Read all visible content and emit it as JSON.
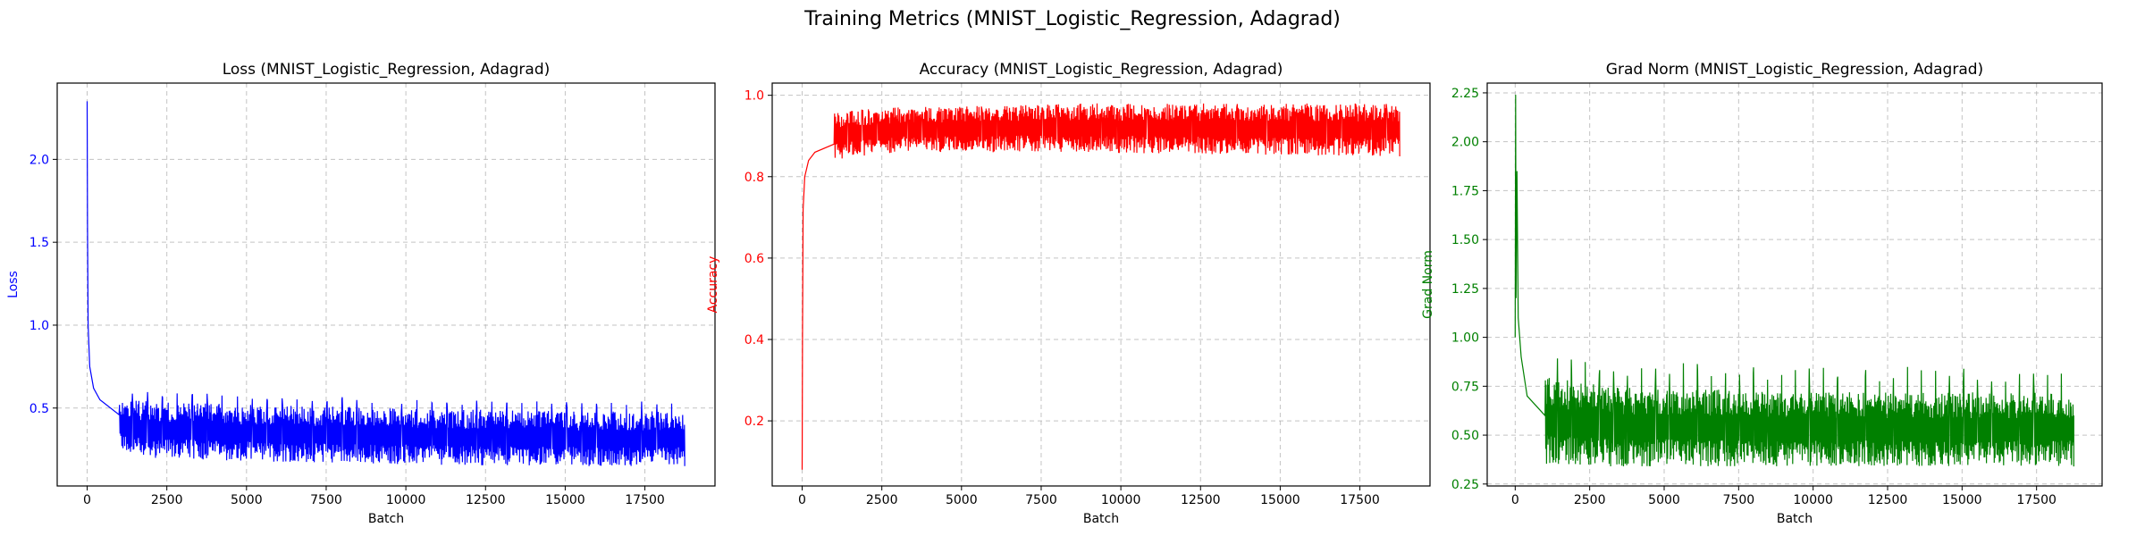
{
  "figure": {
    "title": "Training Metrics (MNIST_Logistic_Regression, Adagrad)"
  },
  "chart_data": [
    {
      "type": "line",
      "title": "Loss (MNIST_Logistic_Regression, Adagrad)",
      "xlabel": "Batch",
      "ylabel": "Loss",
      "color": "#0000ff",
      "label_color": "#0000ff",
      "grid": true,
      "xlim": [
        -940,
        19700
      ],
      "ylim": [
        0.03,
        2.46
      ],
      "xticks": [
        0,
        2500,
        5000,
        7500,
        10000,
        12500,
        15000,
        17500
      ],
      "yticks": [
        0.5,
        1.0,
        1.5,
        2.0
      ],
      "series": [
        {
          "x_end": 18750,
          "initial": [
            [
              0,
              2.35
            ],
            [
              10,
              1.6
            ],
            [
              30,
              1.0
            ],
            [
              80,
              0.75
            ],
            [
              200,
              0.62
            ],
            [
              400,
              0.55
            ],
            [
              1000,
              0.46
            ]
          ],
          "upper_envelope": [
            [
              0,
              2.35
            ],
            [
              60,
              0.82
            ],
            [
              150,
              0.62
            ],
            [
              600,
              0.56
            ],
            [
              2000,
              0.54
            ],
            [
              5000,
              0.52
            ],
            [
              10000,
              0.5
            ],
            [
              15000,
              0.48
            ],
            [
              18750,
              0.48
            ]
          ],
          "lower_envelope": [
            [
              0,
              2.35
            ],
            [
              60,
              0.6
            ],
            [
              150,
              0.4
            ],
            [
              600,
              0.25
            ],
            [
              2000,
              0.2
            ],
            [
              5000,
              0.18
            ],
            [
              10000,
              0.16
            ],
            [
              15000,
              0.15
            ],
            [
              18750,
              0.15
            ]
          ],
          "period": 470,
          "spike": 0.06
        }
      ]
    },
    {
      "type": "line",
      "title": "Accuracy (MNIST_Logistic_Regression, Adagrad)",
      "xlabel": "Batch",
      "ylabel": "Accuracy",
      "color": "#ff0000",
      "label_color": "#ff0000",
      "grid": true,
      "xlim": [
        -940,
        19700
      ],
      "ylim": [
        0.04,
        1.03
      ],
      "xticks": [
        0,
        2500,
        5000,
        7500,
        10000,
        12500,
        15000,
        17500
      ],
      "yticks": [
        0.2,
        0.4,
        0.6,
        0.8,
        1.0
      ],
      "series": [
        {
          "x_end": 18750,
          "initial": [
            [
              0,
              0.08
            ],
            [
              10,
              0.4
            ],
            [
              30,
              0.72
            ],
            [
              80,
              0.8
            ],
            [
              200,
              0.84
            ],
            [
              400,
              0.86
            ],
            [
              1000,
              0.88
            ]
          ],
          "upper_envelope": [
            [
              0,
              0.08
            ],
            [
              60,
              0.9
            ],
            [
              200,
              0.94
            ],
            [
              800,
              0.96
            ],
            [
              3000,
              0.97
            ],
            [
              8000,
              0.98
            ],
            [
              18750,
              0.98
            ]
          ],
          "lower_envelope": [
            [
              0,
              0.08
            ],
            [
              60,
              0.75
            ],
            [
              200,
              0.81
            ],
            [
              800,
              0.84
            ],
            [
              3000,
              0.86
            ],
            [
              8000,
              0.86
            ],
            [
              18750,
              0.85
            ]
          ],
          "period": 470,
          "spike": -0.02
        }
      ]
    },
    {
      "type": "line",
      "title": "Grad Norm (MNIST_Logistic_Regression, Adagrad)",
      "xlabel": "Batch",
      "ylabel": "Grad Norm",
      "color": "#008000",
      "label_color": "#008000",
      "grid": true,
      "xlim": [
        -940,
        19700
      ],
      "ylim": [
        0.24,
        2.3
      ],
      "xticks": [
        0,
        2500,
        5000,
        7500,
        10000,
        12500,
        15000,
        17500
      ],
      "yticks": [
        0.25,
        0.5,
        0.75,
        1.0,
        1.25,
        1.5,
        1.75,
        2.0,
        2.25
      ],
      "series": [
        {
          "x_end": 18750,
          "initial": [
            [
              0,
              1.0
            ],
            [
              15,
              2.24
            ],
            [
              30,
              1.2
            ],
            [
              60,
              1.85
            ],
            [
              100,
              1.1
            ],
            [
              200,
              0.9
            ],
            [
              400,
              0.7
            ],
            [
              1000,
              0.6
            ]
          ],
          "upper_envelope": [
            [
              0,
              1.0
            ],
            [
              100,
              1.0
            ],
            [
              300,
              0.9
            ],
            [
              1000,
              0.8
            ],
            [
              3000,
              0.75
            ],
            [
              10000,
              0.72
            ],
            [
              18750,
              0.72
            ]
          ],
          "lower_envelope": [
            [
              0,
              1.0
            ],
            [
              100,
              0.45
            ],
            [
              300,
              0.38
            ],
            [
              1000,
              0.35
            ],
            [
              3000,
              0.34
            ],
            [
              10000,
              0.34
            ],
            [
              18750,
              0.34
            ]
          ],
          "period": 470,
          "spike": 0.13
        }
      ]
    }
  ]
}
